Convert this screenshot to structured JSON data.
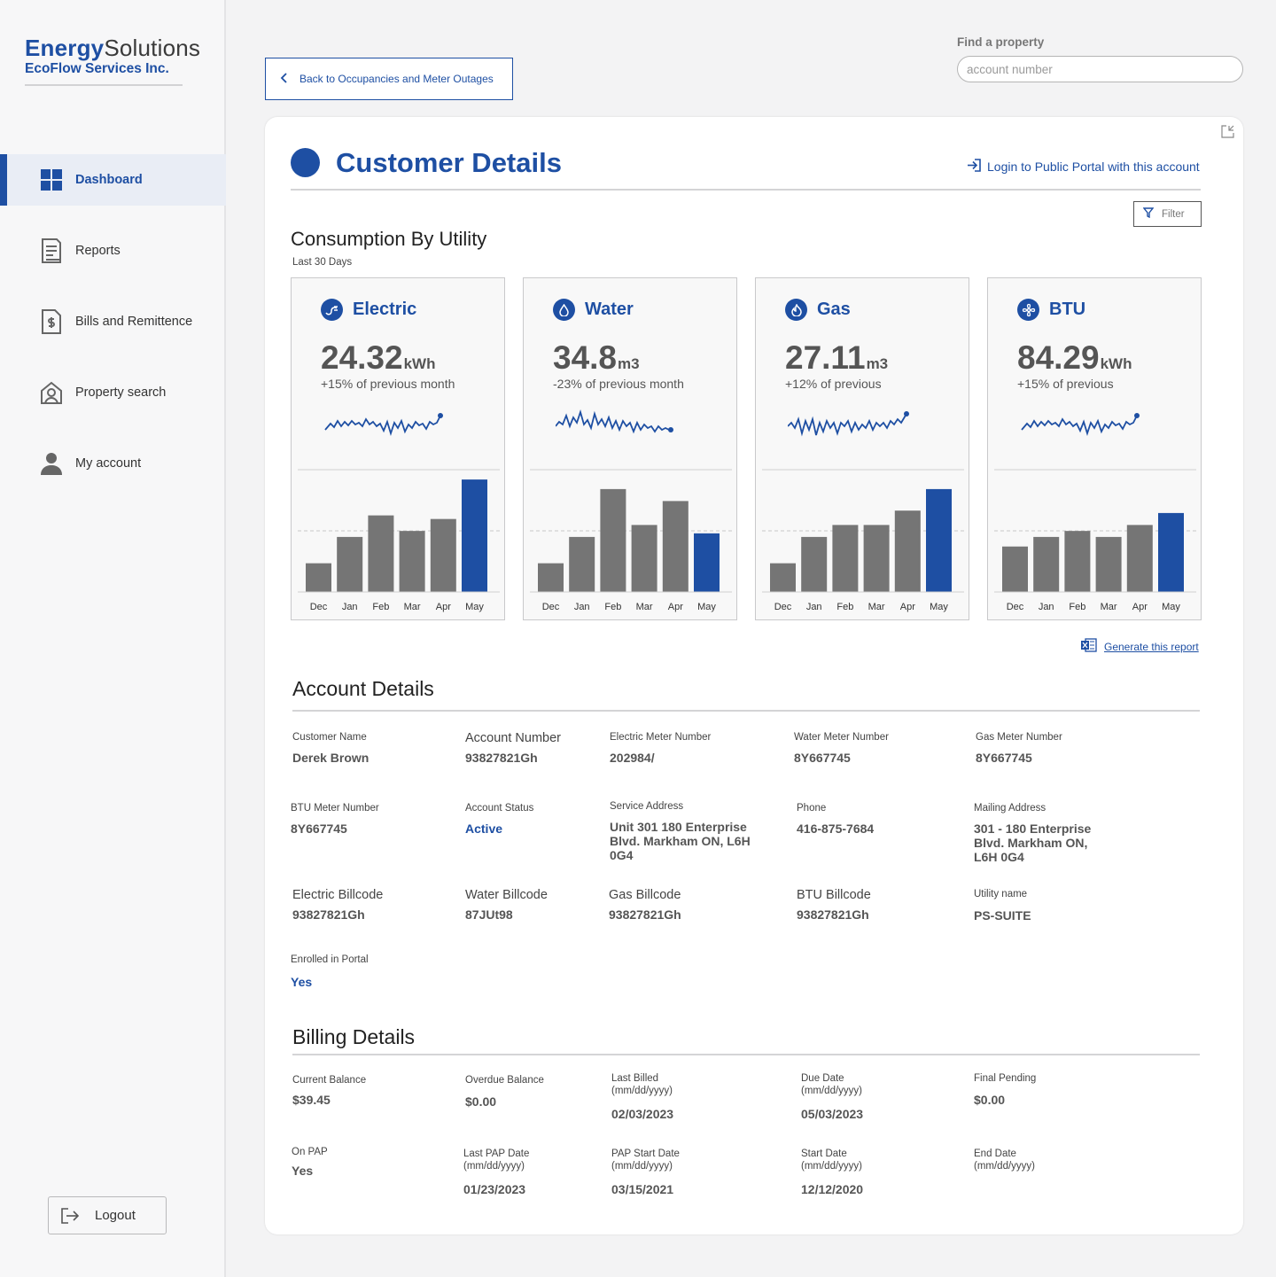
{
  "brand": {
    "name_bold": "Energy",
    "name_light": "Solutions",
    "company": "EcoFlow Services Inc."
  },
  "nav": {
    "items": [
      {
        "label": "Dashboard",
        "icon": "dashboard-icon",
        "active": true
      },
      {
        "label": "Reports",
        "icon": "report-icon"
      },
      {
        "label": "Bills and Remittence",
        "icon": "bill-icon"
      },
      {
        "label": "Property search",
        "icon": "property-search-icon"
      },
      {
        "label": "My account",
        "icon": "user-icon"
      }
    ],
    "logout": "Logout"
  },
  "topbar": {
    "back_label": "Back to Occupancies and Meter Outages",
    "find_label": "Find a property",
    "find_placeholder": "account number"
  },
  "customer": {
    "title": "Customer Details",
    "portal_link": "Login to Public Portal with this account",
    "filter_label": "Filter"
  },
  "consumption": {
    "title": "Consumption By Utility",
    "subtitle": "Last 30 Days",
    "generate_link": "Generate this report"
  },
  "chart_data": [
    {
      "type": "bar",
      "title": "Electric",
      "value": "24.32",
      "unit": "kWh",
      "change": "+15% of previous month",
      "categories": [
        "Dec",
        "Jan",
        "Feb",
        "Mar",
        "Apr",
        "May"
      ],
      "values": [
        24,
        46,
        64,
        51,
        61,
        94
      ],
      "highlight": "May"
    },
    {
      "type": "bar",
      "title": "Water",
      "value": "34.8",
      "unit": "m3",
      "change": "-23% of previous month",
      "categories": [
        "Dec",
        "Jan",
        "Feb",
        "Mar",
        "Apr",
        "May"
      ],
      "values": [
        24,
        46,
        86,
        56,
        76,
        49
      ],
      "highlight": "May"
    },
    {
      "type": "bar",
      "title": "Gas",
      "value": "27.11",
      "unit": "m3",
      "change": "+12% of previous",
      "categories": [
        "Dec",
        "Jan",
        "Feb",
        "Mar",
        "Apr",
        "May"
      ],
      "values": [
        24,
        46,
        56,
        56,
        68,
        86
      ],
      "highlight": "May"
    },
    {
      "type": "bar",
      "title": "BTU",
      "value": "84.29",
      "unit": "kWh",
      "change": "+15% of previous",
      "categories": [
        "Dec",
        "Jan",
        "Feb",
        "Mar",
        "Apr",
        "May"
      ],
      "values": [
        38,
        46,
        51,
        46,
        56,
        66
      ],
      "highlight": "May"
    }
  ],
  "account": {
    "title": "Account Details",
    "fields": [
      {
        "label": "Customer Name",
        "value": "Derek Brown"
      },
      {
        "label": "Account Number",
        "value": "93827821Gh"
      },
      {
        "label": "Electric Meter Number",
        "value": "202984/"
      },
      {
        "label": "Water Meter Number",
        "value": "8Y667745"
      },
      {
        "label": "Gas Meter Number",
        "value": "8Y667745"
      },
      {
        "label": "BTU Meter Number",
        "value": "8Y667745"
      },
      {
        "label": "Account Status",
        "value": "Active"
      },
      {
        "label": "Service Address",
        "value": "Unit 301 180 Enterprise Blvd. Markham ON, L6H 0G4"
      },
      {
        "label": "Phone",
        "value": "416-875-7684"
      },
      {
        "label": "Mailing Address",
        "value": "301 - 180 Enterprise Blvd. Markham ON, L6H 0G4"
      },
      {
        "label": "Electric Billcode",
        "value": "93827821Gh"
      },
      {
        "label": "Water Billcode",
        "value": "87JUt98"
      },
      {
        "label": "Gas Billcode",
        "value": "93827821Gh"
      },
      {
        "label": "BTU Billcode",
        "value": "93827821Gh"
      },
      {
        "label": "Utility name",
        "value": "PS-SUITE"
      },
      {
        "label": "Enrolled in Portal",
        "value": "Yes"
      }
    ]
  },
  "billing": {
    "title": "Billing Details",
    "fields": [
      {
        "label": "Current Balance",
        "value": "$39.45"
      },
      {
        "label": "Overdue Balance",
        "value": "$0.00"
      },
      {
        "label": "Last Billed (mm/dd/yyyy)",
        "value": "02/03/2023"
      },
      {
        "label": "Due Date (mm/dd/yyyy)",
        "value": "05/03/2023"
      },
      {
        "label": "Final Pending",
        "value": "$0.00"
      },
      {
        "label": "On PAP",
        "value": "Yes"
      },
      {
        "label": "Last PAP Date (mm/dd/yyyy)",
        "value": "01/23/2023"
      },
      {
        "label": "PAP Start Date (mm/dd/yyyy)",
        "value": "03/15/2021"
      },
      {
        "label": "Start Date (mm/dd/yyyy)",
        "value": "12/12/2020"
      },
      {
        "label": "End Date (mm/dd/yyyy)",
        "value": ""
      }
    ]
  },
  "colors": {
    "accent": "#1e4fa3",
    "bar": "#757575",
    "sidebar_bg": "#f7f7f8",
    "page_bg": "#f3f3f4"
  }
}
